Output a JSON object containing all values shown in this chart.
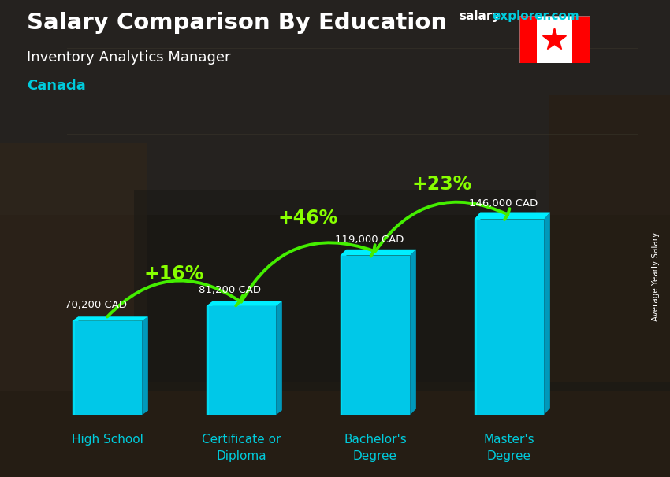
{
  "title_main": "Salary Comparison By Education",
  "title_sub": "Inventory Analytics Manager",
  "title_country": "Canada",
  "watermark_salary": "salary",
  "watermark_explorer": "explorer.com",
  "ylabel_rotated": "Average Yearly Salary",
  "categories": [
    "High School",
    "Certificate or\nDiploma",
    "Bachelor's\nDegree",
    "Master's\nDegree"
  ],
  "values": [
    70200,
    81200,
    119000,
    146000
  ],
  "labels": [
    "70,200 CAD",
    "81,200 CAD",
    "119,000 CAD",
    "146,000 CAD"
  ],
  "pct_labels": [
    "+16%",
    "+46%",
    "+23%"
  ],
  "bar_color_front": "#00c8e8",
  "bar_color_left": "#00ddf5",
  "bar_color_right": "#0099bb",
  "bar_color_top": "#00eeff",
  "bg_dark": "#2a2a2a",
  "title_color": "#ffffff",
  "subtitle_color": "#ffffff",
  "country_color": "#00ccdd",
  "label_color": "#ffffff",
  "pct_color": "#88ff00",
  "arrow_color": "#44ee00",
  "cat_label_color": "#00ccdd",
  "watermark_w_color": "#ffffff",
  "watermark_e_color": "#00ccdd",
  "ylim_max": 185000,
  "bar_width": 0.52,
  "figsize": [
    8.5,
    6.06
  ],
  "dpi": 100
}
